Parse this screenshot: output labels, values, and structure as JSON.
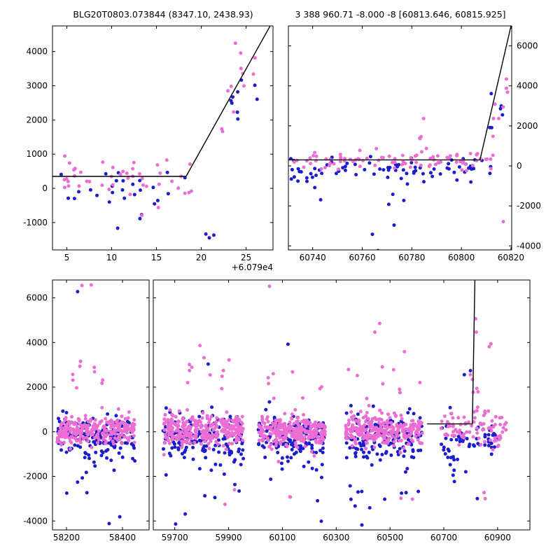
{
  "figure": {
    "background": "#ffffff",
    "colors": {
      "pink": "#ec6ed2",
      "blue": "#1c1ccd",
      "line": "#000000"
    }
  },
  "chart_data": [
    {
      "panel": "A",
      "type": "scatter",
      "title": "BLG20T0803.073844 (8347.10, 2438.93)",
      "x_offset_label": "+6.079e4",
      "xlim": [
        60793.4,
        60818.0
      ],
      "ylim": [
        -1800,
        4750
      ],
      "xticks": {
        "values": [
          60795,
          60800,
          60805,
          60810,
          60815
        ],
        "labels": [
          "5",
          "10",
          "15",
          "20",
          "25"
        ]
      },
      "yticks": {
        "values": [
          -1000,
          0,
          1000,
          2000,
          3000,
          4000
        ],
        "labels": [
          "-1000",
          "0",
          "1000",
          "2000",
          "3000",
          "4000"
        ],
        "side": "left"
      },
      "model_line": [
        [
          60793.4,
          350
        ],
        [
          60808.3,
          350
        ],
        [
          60818.0,
          4900
        ]
      ],
      "seed": 11,
      "clusters": [
        {
          "c": "blue",
          "n": 26,
          "x": [
            60794.0,
            60808.5
          ],
          "my": 0,
          "sy": 330
        },
        {
          "c": "blue",
          "n": 5,
          "x": [
            60799.0,
            60812.5
          ],
          "my": -1150,
          "sy": 230
        },
        {
          "c": "blue",
          "n": 9,
          "x": [
            60809.5,
            60816.5
          ],
          "my": 250,
          "sy": 550,
          "slope": 340,
          "xref": 60808
        },
        {
          "c": "pink",
          "n": 46,
          "x": [
            60793.8,
            60809.0
          ],
          "my": 300,
          "sy": 290
        },
        {
          "c": "pink",
          "n": 12,
          "x": [
            60809.0,
            60816.6
          ],
          "my": 350,
          "sy": 650,
          "slope": 410,
          "xref": 60808
        }
      ]
    },
    {
      "panel": "B",
      "type": "scatter",
      "title": "3 388 960.71 -8.000 -8 [60813.646, 60815.925]",
      "xlim": [
        60730.2,
        60820.3
      ],
      "ylim": [
        -4200,
        7000
      ],
      "xticks": {
        "values": [
          60740,
          60760,
          60780,
          60800,
          60820
        ],
        "labels": [
          "60740",
          "60760",
          "60780",
          "60800",
          "60820"
        ]
      },
      "yticks": {
        "values": [
          -4000,
          -2000,
          0,
          2000,
          4000,
          6000
        ],
        "labels": [
          "-4000",
          "-2000",
          "0",
          "2000",
          "4000",
          "6000"
        ],
        "side": "right"
      },
      "model_line": [
        [
          60730.2,
          300
        ],
        [
          60807.5,
          300
        ],
        [
          60820.3,
          7150
        ]
      ],
      "seed": 22,
      "clusters": [
        {
          "c": "blue",
          "n": 78,
          "x": [
            60731.0,
            60812.0
          ],
          "my": -150,
          "sy": 300
        },
        {
          "c": "blue",
          "n": 7,
          "x": [
            60738.0,
            60792.0
          ],
          "my": -2500,
          "sy": 700
        },
        {
          "c": "blue",
          "n": 1,
          "x": [
            60765.0,
            60767.0
          ],
          "my": -4300,
          "sy": 60
        },
        {
          "c": "blue",
          "n": 6,
          "x": [
            60808.0,
            60818.0
          ],
          "my": 500,
          "sy": 500,
          "slope": 260,
          "xref": 60808
        },
        {
          "c": "blue",
          "n": 1,
          "x": [
            60811.5,
            60812.5
          ],
          "my": 3600,
          "sy": 60
        },
        {
          "c": "pink",
          "n": 92,
          "x": [
            60731.0,
            60813.0
          ],
          "my": 250,
          "sy": 230
        },
        {
          "c": "pink",
          "n": 5,
          "x": [
            60782.0,
            60786.0
          ],
          "my": 1800,
          "sy": 420
        },
        {
          "c": "pink",
          "n": 8,
          "x": [
            60809.0,
            60819.5
          ],
          "my": 700,
          "sy": 650,
          "slope": 330,
          "xref": 60808
        },
        {
          "c": "pink",
          "n": 1,
          "x": [
            60816.5,
            60818.0
          ],
          "my": -2900,
          "sy": 80
        }
      ]
    },
    {
      "panel": "C",
      "type": "scatter",
      "title": "",
      "xlim": [
        58150,
        58495
      ],
      "ylim": [
        -4400,
        6800
      ],
      "xticks": {
        "values": [
          58200,
          58400
        ],
        "labels": [
          "58200",
          "58400"
        ]
      },
      "yticks": {
        "values": [
          -4000,
          -2000,
          0,
          2000,
          4000,
          6000
        ],
        "labels": [
          "-4000",
          "-2000",
          "0",
          "2000",
          "4000",
          "6000"
        ],
        "side": "left"
      },
      "model_line": null,
      "seed": 33,
      "clusters": [
        {
          "c": "blue",
          "n": 150,
          "x": [
            58165,
            58445
          ],
          "my": -250,
          "sy": 480
        },
        {
          "c": "blue",
          "n": 12,
          "x": [
            58175,
            58440
          ],
          "my": -2300,
          "sy": 800
        },
        {
          "c": "blue",
          "n": 1,
          "x": [
            58235,
            58248
          ],
          "my": 6350,
          "sy": 60
        },
        {
          "c": "blue",
          "n": 2,
          "x": [
            58200,
            58400
          ],
          "my": -3900,
          "sy": 180
        },
        {
          "c": "pink",
          "n": 250,
          "x": [
            58165,
            58445
          ],
          "my": 30,
          "sy": 330
        },
        {
          "c": "pink",
          "n": 9,
          "x": [
            58200,
            58335
          ],
          "my": 2550,
          "sy": 350
        },
        {
          "c": "pink",
          "n": 2,
          "x": [
            58255,
            58305
          ],
          "my": 6750,
          "sy": 160
        },
        {
          "c": "pink",
          "n": 2,
          "x": [
            58285,
            58395
          ],
          "my": -4600,
          "sy": 120
        }
      ]
    },
    {
      "panel": "D",
      "type": "scatter",
      "title": "",
      "xlim": [
        59620,
        61020
      ],
      "ylim": [
        -4400,
        6800
      ],
      "xticks": {
        "values": [
          59700,
          59900,
          60100,
          60300,
          60500,
          60700,
          60900
        ],
        "labels": [
          "59700",
          "59900",
          "60100",
          "60300",
          "60500",
          "60700",
          "60900"
        ]
      },
      "yticks": {
        "values": [
          -4000,
          -2000,
          0,
          2000,
          4000,
          6000
        ],
        "labels": [],
        "side": "none"
      },
      "model_line": [
        [
          60638,
          350
        ],
        [
          60806,
          350
        ],
        [
          60816,
          7100
        ]
      ],
      "seed": 44,
      "clusters": [
        {
          "c": "blue",
          "n": 170,
          "x": [
            59655,
            59955
          ],
          "my": -280,
          "sy": 520
        },
        {
          "c": "blue",
          "n": 13,
          "x": [
            59660,
            59950
          ],
          "my": -2500,
          "sy": 850
        },
        {
          "c": "blue",
          "n": 1,
          "x": [
            59820,
            59840
          ],
          "my": 3000,
          "sy": 80
        },
        {
          "c": "blue",
          "n": 2,
          "x": [
            59740,
            59835
          ],
          "my": -4400,
          "sy": 140
        },
        {
          "c": "blue",
          "n": 150,
          "x": [
            60010,
            60260
          ],
          "my": -300,
          "sy": 500
        },
        {
          "c": "blue",
          "n": 10,
          "x": [
            60015,
            60255
          ],
          "my": -2400,
          "sy": 800
        },
        {
          "c": "blue",
          "n": 1,
          "x": [
            60110,
            60130
          ],
          "my": 3900,
          "sy": 60
        },
        {
          "c": "blue",
          "n": 160,
          "x": [
            60335,
            60620
          ],
          "my": -300,
          "sy": 540
        },
        {
          "c": "blue",
          "n": 12,
          "x": [
            60340,
            60615
          ],
          "my": -2400,
          "sy": 850
        },
        {
          "c": "blue",
          "n": 55,
          "x": [
            60690,
            60905
          ],
          "my": -300,
          "sy": 450
        },
        {
          "c": "blue",
          "n": 6,
          "x": [
            60700,
            60860
          ],
          "my": -2200,
          "sy": 700
        },
        {
          "c": "blue",
          "n": 2,
          "x": [
            60740,
            60800
          ],
          "my": 2700,
          "sy": 250
        },
        {
          "c": "pink",
          "n": 280,
          "x": [
            59655,
            59955
          ],
          "my": 50,
          "sy": 350
        },
        {
          "c": "pink",
          "n": 10,
          "x": [
            59680,
            59950
          ],
          "my": 2400,
          "sy": 500
        },
        {
          "c": "pink",
          "n": 1,
          "x": [
            59788,
            59800
          ],
          "my": 3900,
          "sy": 60
        },
        {
          "c": "pink",
          "n": 2,
          "x": [
            59860,
            59935
          ],
          "my": -3500,
          "sy": 550
        },
        {
          "c": "pink",
          "n": 250,
          "x": [
            60010,
            60260
          ],
          "my": 0,
          "sy": 350
        },
        {
          "c": "pink",
          "n": 8,
          "x": [
            60015,
            60255
          ],
          "my": 2200,
          "sy": 500
        },
        {
          "c": "pink",
          "n": 1,
          "x": [
            60045,
            60062
          ],
          "my": 6500,
          "sy": 60
        },
        {
          "c": "pink",
          "n": 2,
          "x": [
            60060,
            60200
          ],
          "my": -3600,
          "sy": 400
        },
        {
          "c": "pink",
          "n": 260,
          "x": [
            60335,
            60620
          ],
          "my": 80,
          "sy": 380
        },
        {
          "c": "pink",
          "n": 10,
          "x": [
            60340,
            60615
          ],
          "my": 2400,
          "sy": 600
        },
        {
          "c": "pink",
          "n": 2,
          "x": [
            60440,
            60468
          ],
          "my": 4700,
          "sy": 250
        },
        {
          "c": "pink",
          "n": 2,
          "x": [
            60540,
            60585
          ],
          "my": -3200,
          "sy": 280
        },
        {
          "c": "pink",
          "n": 85,
          "x": [
            60690,
            60932
          ],
          "my": 150,
          "sy": 400
        },
        {
          "c": "pink",
          "n": 8,
          "x": [
            60795,
            60832
          ],
          "my": 1500,
          "sy": 900
        },
        {
          "c": "pink",
          "n": 2,
          "x": [
            60815,
            60848
          ],
          "my": 4800,
          "sy": 330
        },
        {
          "c": "pink",
          "n": 2,
          "x": [
            60845,
            60878
          ],
          "my": 3900,
          "sy": 180
        },
        {
          "c": "pink",
          "n": 2,
          "x": [
            60830,
            60872
          ],
          "my": -3000,
          "sy": 240
        }
      ]
    }
  ]
}
